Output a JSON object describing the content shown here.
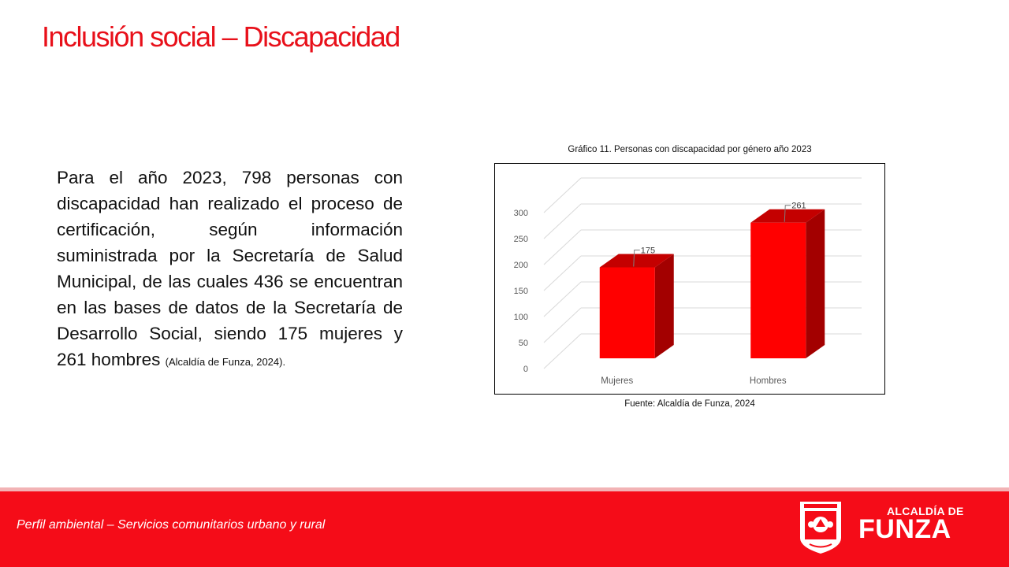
{
  "slide": {
    "title": "Inclusión social – Discapacidad",
    "paragraph": "Para el año 2023, 798 personas con discapacidad han realizado el proceso de certificación, según información suministrada por la Secretaría de Salud Municipal, de las cuales 436 se encuentran en las bases de datos de la Secretaría de Desarrollo Social, siendo 175 mujeres y 261 hombres",
    "citation": "(Alcaldía de Funza, 2024)."
  },
  "chart_data": {
    "type": "bar",
    "title": "Gráfico 11. Personas con discapacidad por género año 2023",
    "source": "Fuente: Alcaldía de Funza, 2024",
    "categories": [
      "Mujeres",
      "Hombres"
    ],
    "values": [
      175,
      261
    ],
    "data_labels": [
      "175",
      "261"
    ],
    "ylim": [
      0,
      300
    ],
    "yticks": [
      0,
      50,
      100,
      150,
      200,
      250,
      300
    ],
    "grid": true,
    "three_d": true,
    "bar_color": "#ff0000",
    "legend": "none"
  },
  "footer": {
    "text": "Perfil ambiental – Servicios comunitarios urbano y rural",
    "logo_line1": "ALCALDÍA DE",
    "logo_line2": "FUNZA"
  },
  "colors": {
    "accent": "#e8101a",
    "footer_bg": "#f50c18"
  }
}
